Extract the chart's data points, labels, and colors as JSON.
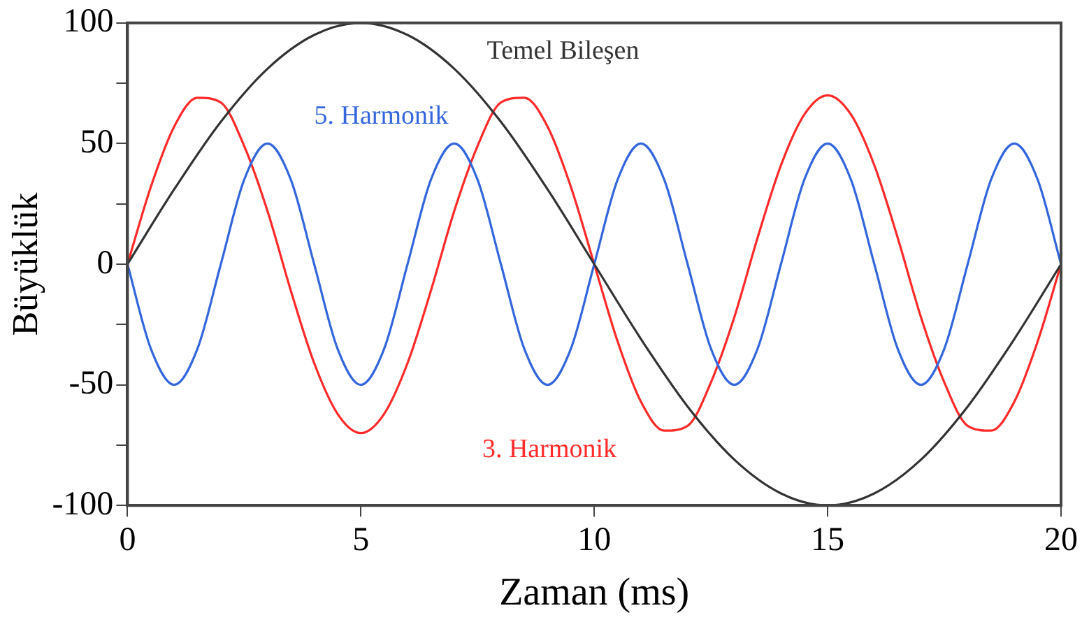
{
  "chart_data": {
    "type": "line",
    "xlabel": "Zaman (ms)",
    "ylabel": "Büyüklük",
    "xlim": [
      0,
      20
    ],
    "xticks": [
      0,
      5,
      10,
      15,
      20
    ],
    "ylim": [
      -100,
      100
    ],
    "yticks": [
      -100,
      {
        "value": -75,
        "label": null
      },
      -50,
      {
        "value": -25,
        "label": null
      },
      0,
      {
        "value": 25,
        "label": null
      },
      50,
      {
        "value": 75,
        "label": null
      },
      100
    ],
    "grid": false,
    "legend": false,
    "marker": "none",
    "line_style": "solid",
    "series": [
      {
        "name": "Temel Bileşen",
        "color": "#333333",
        "x": [
          0,
          1,
          2,
          3,
          4,
          5,
          6,
          7,
          8,
          9,
          10,
          11,
          12,
          13,
          14,
          15,
          16,
          17,
          18,
          19,
          20
        ],
        "values": [
          0,
          31,
          59,
          81,
          95,
          100,
          95,
          81,
          59,
          31,
          0,
          -31,
          -59,
          -81,
          -95,
          -100,
          -95,
          -81,
          -59,
          -31,
          0
        ]
      },
      {
        "name": "5. Harmonik",
        "color": "#3366dd",
        "x": [
          0,
          0.5,
          1,
          1.5,
          2,
          2.5,
          3,
          3.5,
          4,
          4.5,
          5,
          5.5,
          6,
          6.5,
          7,
          7.5,
          8,
          8.5,
          9,
          9.5,
          10,
          10.5,
          11,
          11.5,
          12,
          12.5,
          13,
          13.5,
          14,
          14.5,
          15,
          15.5,
          16,
          16.5,
          17,
          17.5,
          18,
          18.5,
          19,
          19.5,
          20
        ],
        "values": [
          0,
          -35,
          -50,
          -35,
          0,
          35,
          50,
          35,
          0,
          -35,
          -50,
          -35,
          0,
          35,
          50,
          35,
          0,
          -35,
          -50,
          -35,
          0,
          35,
          50,
          35,
          0,
          -35,
          -50,
          -35,
          0,
          35,
          50,
          35,
          0,
          -35,
          -50,
          -35,
          0,
          35,
          50,
          35,
          0
        ]
      },
      {
        "name": "3. Harmonik",
        "color": "#ff2a2a",
        "x": [
          0,
          0.5,
          1,
          1.5,
          2,
          2.5,
          3,
          3.5,
          4,
          4.5,
          5,
          5.5,
          6,
          6.5,
          7,
          7.5,
          8,
          8.5,
          9,
          9.5,
          10,
          10.5,
          11,
          11.5,
          12,
          12.5,
          13,
          13.5,
          14,
          14.5,
          15,
          15.5,
          16,
          16.5,
          17,
          17.5,
          18,
          18.5,
          19,
          19.5,
          20
        ],
        "values": [
          0,
          32,
          57,
          69,
          67,
          49,
          22,
          -11,
          -41,
          -62,
          -70,
          -62,
          -41,
          -11,
          22,
          49,
          67,
          69,
          57,
          32,
          0,
          -32,
          -57,
          -69,
          -67,
          -49,
          -22,
          11,
          41,
          62,
          70,
          62,
          41,
          11,
          -22,
          -49,
          -67,
          -69,
          -57,
          -32,
          0
        ]
      }
    ]
  }
}
